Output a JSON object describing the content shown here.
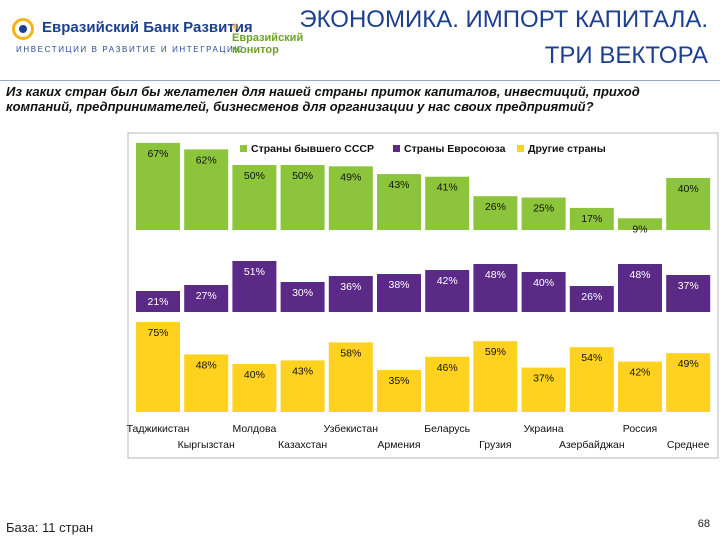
{
  "header": {
    "logo_name": "Евразийский Банк Развития",
    "logo_tagline": "ИНВЕСТИЦИИ В РАЗВИТИЕ И ИНТЕГРАЦИЮ",
    "monitor_line1": "Евразийский",
    "monitor_line2": "монитор",
    "title_line1": "ЭКОНОМИКА. ИМПОРТ КАПИТАЛА.",
    "title_line2": "ТРИ ВЕКТОРА"
  },
  "question": "Из каких стран был бы желателен для нашей страны приток капиталов, инвестиций, приход компаний, предпринимателей, бизнесменов для организации у нас своих предприятий?",
  "footer": {
    "base": "База: 11 стран",
    "page": "68"
  },
  "colors": {
    "green": "#8cc43c",
    "purple": "#5b2a86",
    "yellow": "#ffd21f",
    "title_blue": "#1d3f8f"
  },
  "chart_data": {
    "type": "bar",
    "categories": [
      "Таджикистан",
      "Кыргызстан",
      "Молдова",
      "Казахстан",
      "Узбекистан",
      "Армения",
      "Беларусь",
      "Грузия",
      "Украина",
      "Азербайджан",
      "Россия",
      "Среднее"
    ],
    "legend_position": "top",
    "series": [
      {
        "name": "Страны бывшего СССР",
        "color": "#8cc43c",
        "values": [
          67,
          62,
          50,
          50,
          49,
          43,
          41,
          26,
          25,
          17,
          9,
          40
        ],
        "labels": [
          "67%",
          "62%",
          "50%",
          "50%",
          "49%",
          "43%",
          "41%",
          "26%",
          "25%",
          "17%",
          "9%",
          "40%"
        ]
      },
      {
        "name": "Страны Евросоюза",
        "color": "#5b2a86",
        "values": [
          21,
          27,
          51,
          30,
          36,
          38,
          42,
          48,
          40,
          26,
          48,
          37
        ],
        "labels": [
          "21%",
          "27%",
          "51%",
          "30%",
          "36%",
          "38%",
          "42%",
          "48%",
          "40%",
          "26%",
          "48%",
          "37%"
        ]
      },
      {
        "name": "Другие страны",
        "color": "#ffd21f",
        "values": [
          75,
          48,
          40,
          43,
          58,
          35,
          46,
          59,
          37,
          54,
          42,
          49
        ],
        "labels": [
          "75%",
          "48%",
          "40%",
          "43%",
          "58%",
          "35%",
          "46%",
          "59%",
          "37%",
          "54%",
          "42%",
          "49%"
        ]
      }
    ]
  }
}
